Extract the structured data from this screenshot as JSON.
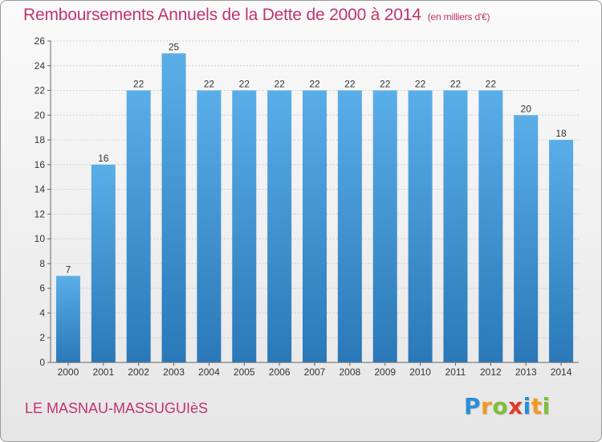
{
  "chart_data": {
    "type": "bar",
    "title": "Remboursements Annuels de la Dette de 2000 à 2014",
    "unit_label": "(en milliers d'€)",
    "categories": [
      "2000",
      "2001",
      "2002",
      "2003",
      "2004",
      "2005",
      "2006",
      "2007",
      "2008",
      "2009",
      "2010",
      "2011",
      "2012",
      "2013",
      "2014"
    ],
    "values": [
      7,
      16,
      22,
      25,
      22,
      22,
      22,
      22,
      22,
      22,
      22,
      22,
      22,
      20,
      18
    ],
    "ylim": [
      0,
      26
    ],
    "yticks": [
      0,
      2,
      4,
      6,
      8,
      10,
      12,
      14,
      16,
      18,
      20,
      22,
      24,
      26
    ],
    "grid": true,
    "bar_color_top": "#5aaee8",
    "bar_color_bottom": "#2a78b8"
  },
  "commune": "LE MASNAU-MASSUGUIèS",
  "logo": {
    "letters": [
      "P",
      "r",
      "o",
      "x",
      "i",
      "t",
      "i"
    ],
    "colors": [
      "#2a8fd6",
      "#f29a1f",
      "#7cbf3a",
      "#e23a2a",
      "#2a8fd6",
      "#f29a1f",
      "#7cbf3a"
    ]
  }
}
